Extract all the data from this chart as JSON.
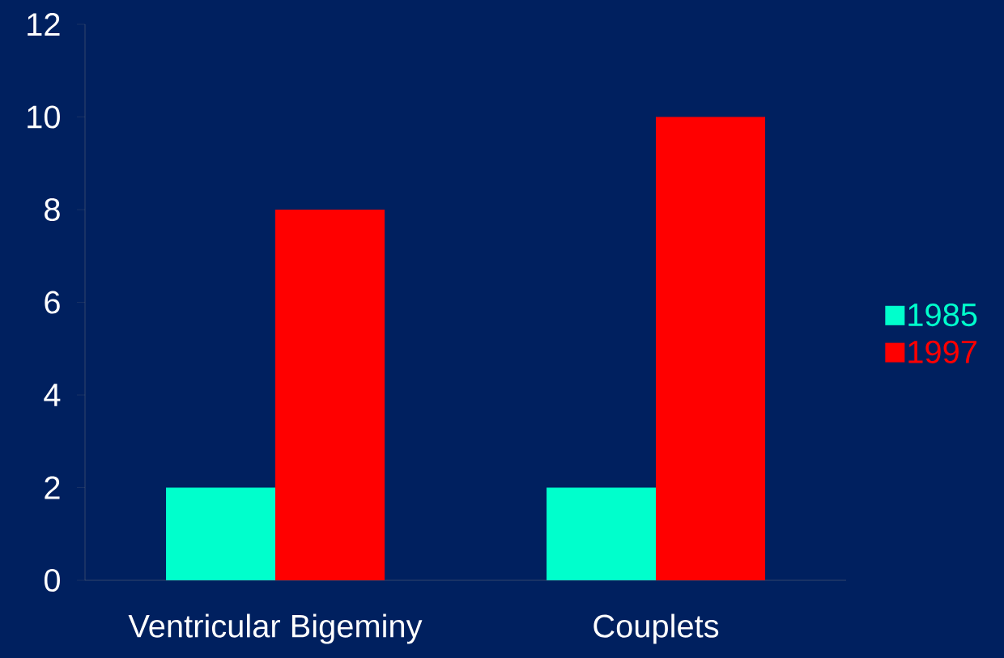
{
  "chart_data": {
    "type": "bar",
    "categories": [
      "Ventricular Bigeminy",
      "Couplets"
    ],
    "series": [
      {
        "name": "1985",
        "color": "#00ffcc",
        "values": [
          2,
          2
        ]
      },
      {
        "name": "1997",
        "color": "#ff0000",
        "values": [
          8,
          10
        ]
      }
    ],
    "ylim": [
      0,
      12
    ],
    "yticks": [
      0,
      2,
      4,
      6,
      8,
      10,
      12
    ],
    "legend": "right"
  }
}
